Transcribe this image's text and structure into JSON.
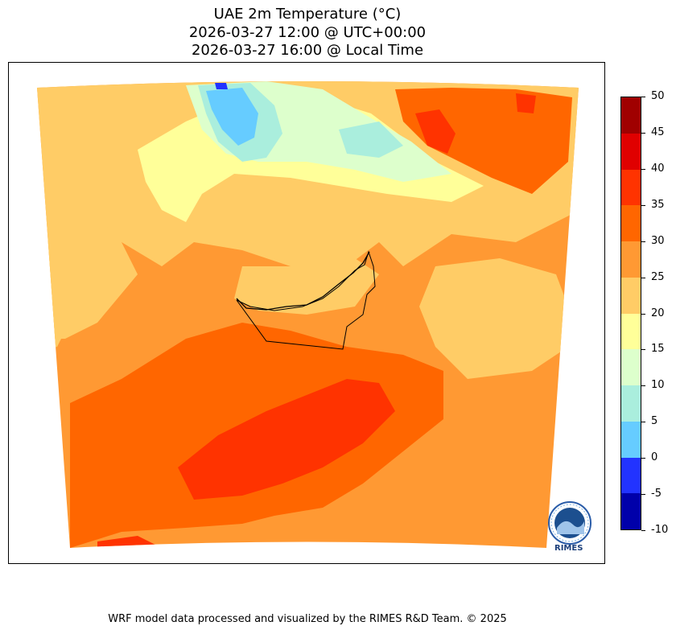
{
  "title": {
    "line1": "UAE 2m Temperature (°C)",
    "line2": "2026-03-27 12:00 @ UTC+00:00",
    "line3": "2026-03-27 16:00 @ Local Time"
  },
  "colorbar": {
    "ticks": [
      "50",
      "45",
      "40",
      "35",
      "30",
      "25",
      "20",
      "15",
      "10",
      "5",
      "0",
      "-5",
      "-10"
    ],
    "levels": [
      {
        "range": "45-50",
        "color": "#a00000"
      },
      {
        "range": "40-45",
        "color": "#e00000"
      },
      {
        "range": "35-40",
        "color": "#ff3300"
      },
      {
        "range": "30-35",
        "color": "#ff6600"
      },
      {
        "range": "25-30",
        "color": "#ff9933"
      },
      {
        "range": "20-25",
        "color": "#ffcc66"
      },
      {
        "range": "15-20",
        "color": "#ffff99"
      },
      {
        "range": "10-15",
        "color": "#ddffcc"
      },
      {
        "range": "5-10",
        "color": "#aaeedd"
      },
      {
        "range": "0-5",
        "color": "#66ccff"
      },
      {
        "range": "-5-0",
        "color": "#2233ff"
      },
      {
        "range": "-10--5",
        "color": "#0000aa"
      }
    ]
  },
  "logo": {
    "text": "RIMES"
  },
  "footer": "WRF model data processed and visualized by the RIMES R&D Team. © 2025"
}
